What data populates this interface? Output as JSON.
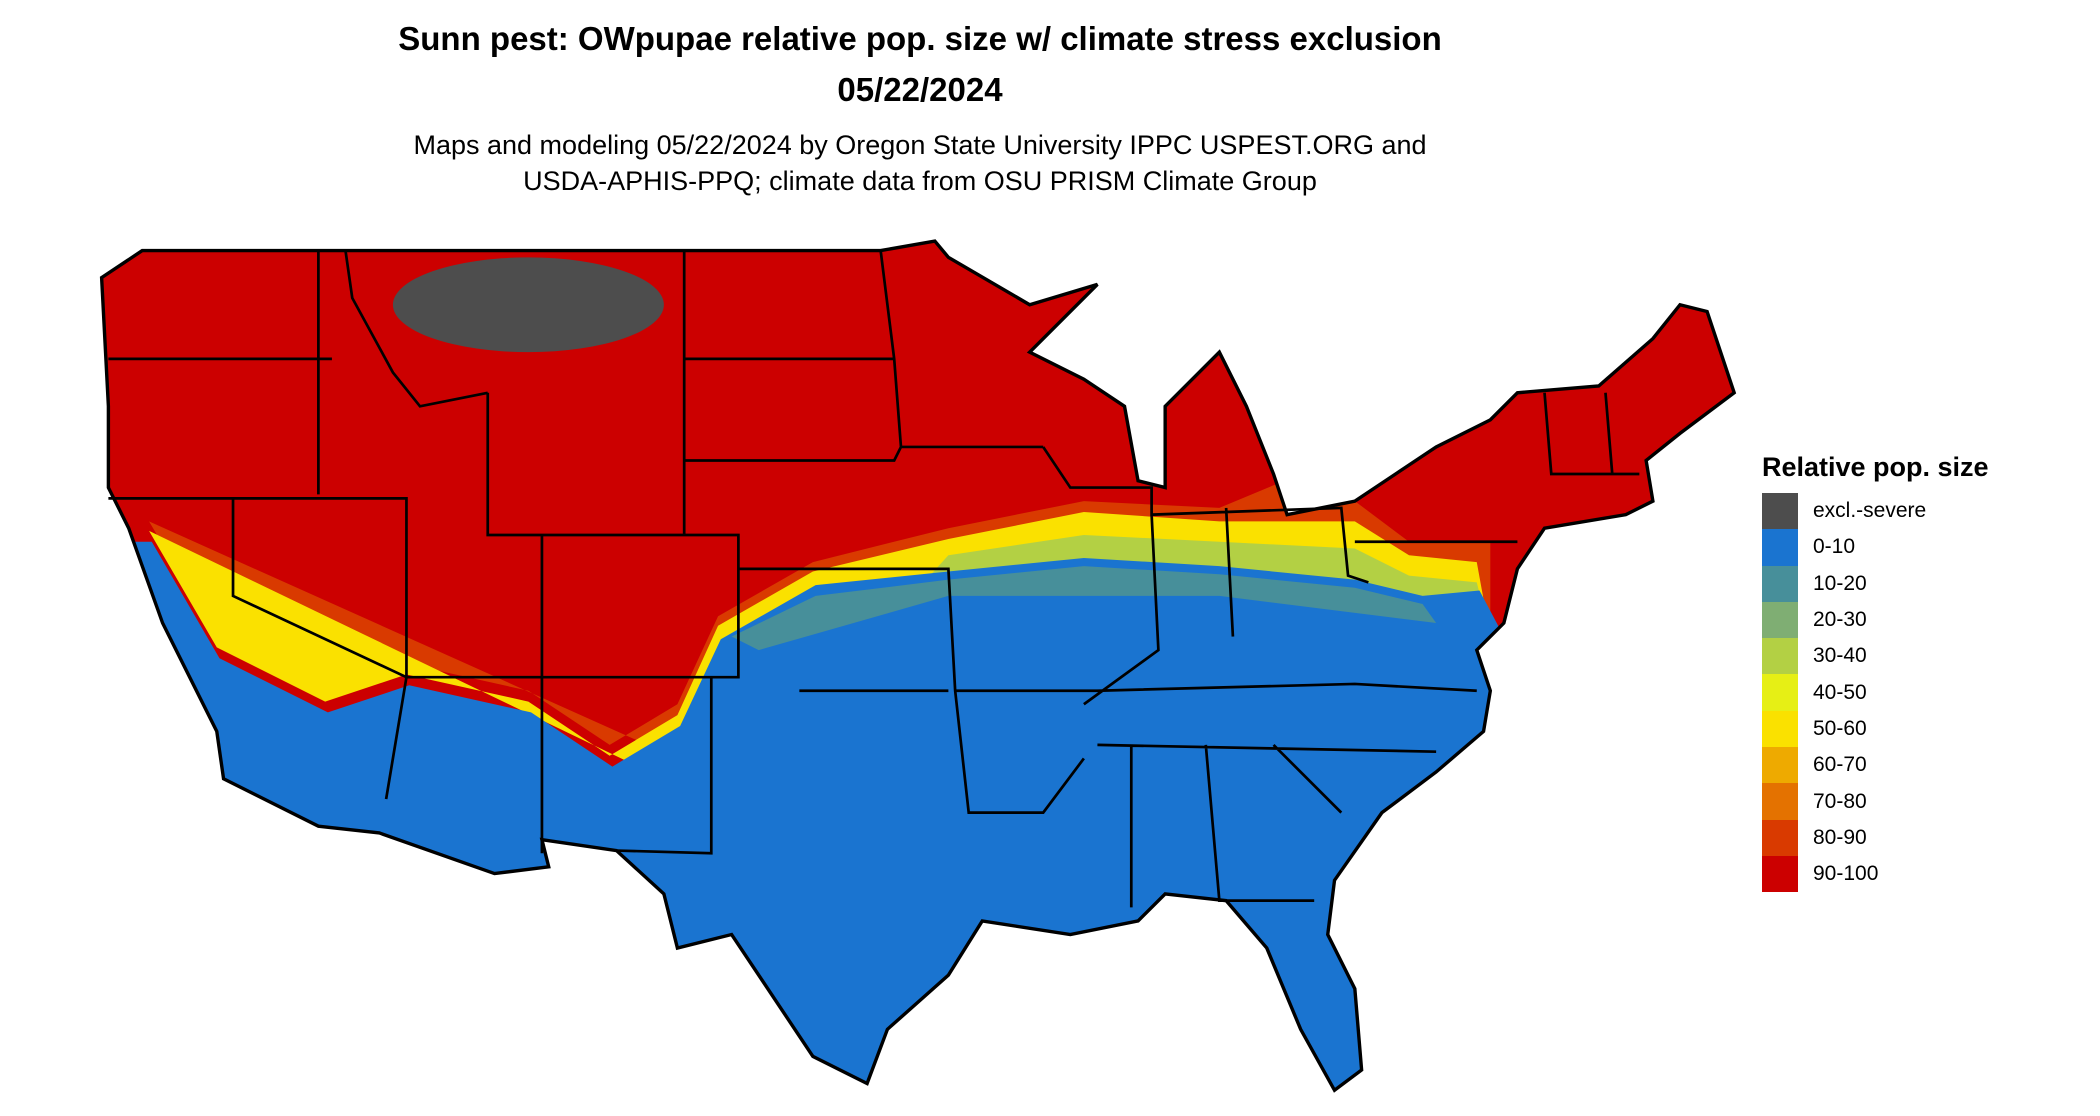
{
  "title_line1": "Sunn pest: OWpupae relative pop. size w/ climate stress exclusion",
  "title_line2": "05/22/2024",
  "subtitle_line1": "Maps and modeling 05/22/2024 by Oregon State University IPPC USPEST.ORG and",
  "subtitle_line2": "USDA-APHIS-PPQ; climate data from OSU PRISM Climate Group",
  "legend": {
    "title": "Relative pop. size",
    "items": [
      {
        "label": "excl.-severe",
        "color": "#4d4d4d"
      },
      {
        "label": "0-10",
        "color": "#1a74d0"
      },
      {
        "label": "10-20",
        "color": "#478f9a"
      },
      {
        "label": "20-30",
        "color": "#7fae73"
      },
      {
        "label": "30-40",
        "color": "#b3d044"
      },
      {
        "label": "40-50",
        "color": "#e6ef15"
      },
      {
        "label": "50-60",
        "color": "#fae100"
      },
      {
        "label": "60-70",
        "color": "#eeaa00"
      },
      {
        "label": "70-80",
        "color": "#e47200"
      },
      {
        "label": "80-90",
        "color": "#d93a00"
      },
      {
        "label": "90-100",
        "color": "#cc0000"
      }
    ]
  }
}
